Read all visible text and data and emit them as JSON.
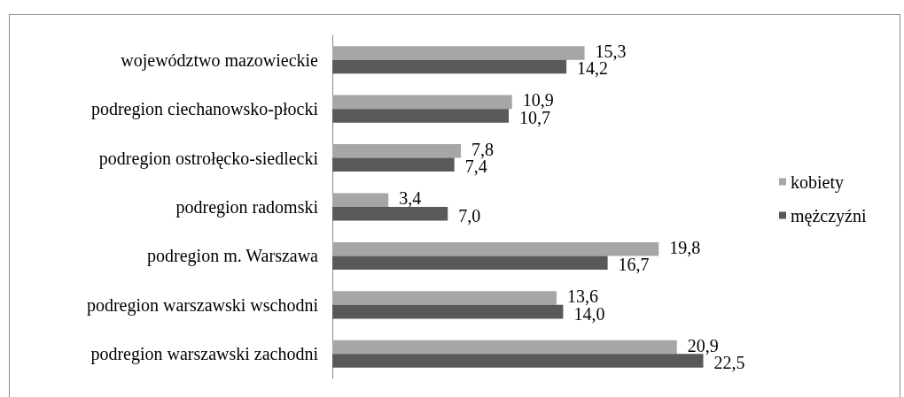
{
  "chart_data": {
    "type": "bar",
    "orientation": "horizontal",
    "categories": [
      "województwo mazowieckie",
      "podregion ciechanowsko-płocki",
      "podregion ostrołęcko-siedlecki",
      "podregion radomski",
      "podregion m. Warszawa",
      "podregion warszawski wschodni",
      "podregion warszawski zachodni"
    ],
    "series": [
      {
        "name": "kobiety",
        "color": "#a6a6a6",
        "values": [
          15.3,
          10.9,
          7.8,
          3.4,
          19.8,
          13.6,
          20.9
        ],
        "value_labels": [
          "15,3",
          "10,9",
          "7,8",
          "3,4",
          "19,8",
          "13,6",
          "20,9"
        ]
      },
      {
        "name": "mężczyźni",
        "color": "#595959",
        "values": [
          14.2,
          10.7,
          7.4,
          7.0,
          16.7,
          14.0,
          22.5
        ],
        "value_labels": [
          "14,2",
          "10,7",
          "7,4",
          "7,0",
          "16,7",
          "14,0",
          "22,5"
        ]
      }
    ],
    "tick_labels": "y",
    "legend": "right"
  }
}
